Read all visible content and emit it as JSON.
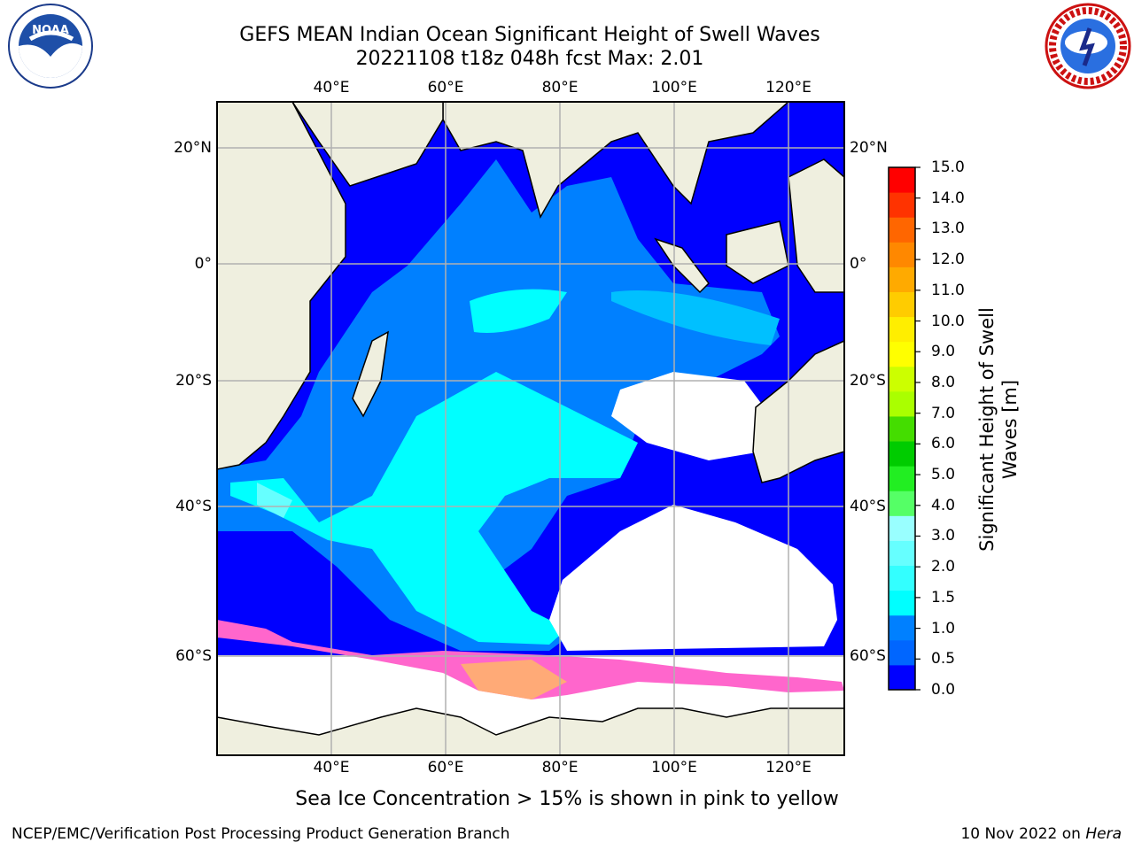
{
  "title_line1": "GEFS MEAN Indian Ocean Significant Height of Swell Waves",
  "title_line2": "20221108 t18z 048h fcst   Max: 2.01",
  "logos": {
    "left": "noaa-logo",
    "right": "national-weather-service-logo",
    "left_text": "NOAA",
    "right_text": "NATIONAL WEATHER SERVICE"
  },
  "axes": {
    "lon_labels": [
      "40°E",
      "60°E",
      "80°E",
      "100°E",
      "120°E"
    ],
    "lat_labels": [
      "20°N",
      "0°",
      "20°S",
      "40°S",
      "60°S"
    ]
  },
  "colorbar": {
    "label": "Significant Height of Swell Waves [m]",
    "ticks": [
      "15.0",
      "14.0",
      "13.0",
      "12.0",
      "11.0",
      "10.0",
      "9.0",
      "8.0",
      "7.0",
      "6.0",
      "5.0",
      "4.0",
      "3.0",
      "2.0",
      "1.5",
      "1.0",
      "0.5",
      "0.0"
    ],
    "colors_bottom_to_top": [
      "#0000ff",
      "#0066ff",
      "#0080ff",
      "#00ffff",
      "#33ffff",
      "#66ffff",
      "#99ffff",
      "#55ff66",
      "#22ee22",
      "#00cc00",
      "#44dd00",
      "#aaff00",
      "#ccff00",
      "#ffff00",
      "#ffee00",
      "#ffcc00",
      "#ffaa00",
      "#ff8800",
      "#ff6600",
      "#ff3300",
      "#ff0000"
    ]
  },
  "map_colors": {
    "land": "#efefdf",
    "ocean_low": "#0000ff",
    "ocean_mid": "#0080ff",
    "swell_high": "#00ffff",
    "swell_top": "#66ffff",
    "ice": "#ff66cc",
    "no_data": "#ffffff",
    "grid": "#b0b0b0"
  },
  "caption": "Sea Ice Concentration > 15% is shown in pink to yellow",
  "footer_left": "NCEP/EMC/Verification Post Processing Product Generation Branch",
  "footer_right_prefix": "10 Nov 2022 on ",
  "footer_right_machine": "Hera"
}
